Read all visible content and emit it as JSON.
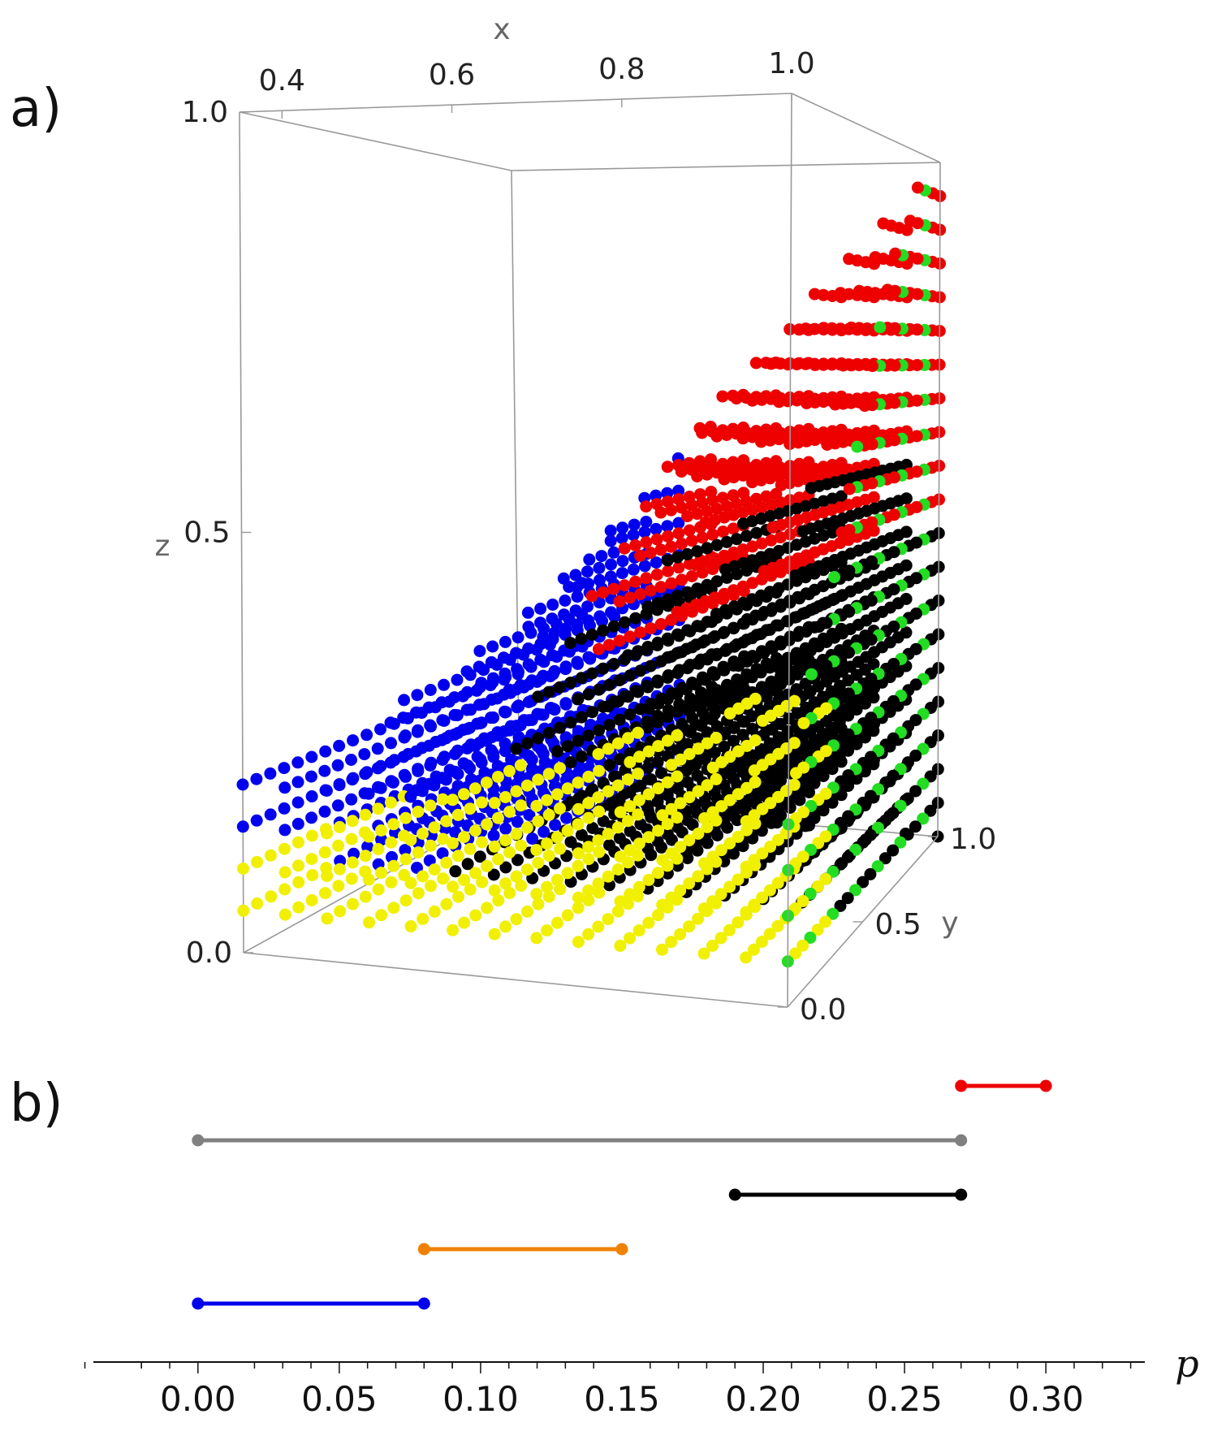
{
  "panels": {
    "a": {
      "label": "a)"
    },
    "b": {
      "label": "b)"
    }
  },
  "chart_data": [
    {
      "type": "scatter",
      "panel": "a",
      "projection": "3d",
      "xlabel": "x",
      "ylabel": "y",
      "zlabel": "z",
      "xlim": [
        0.35,
        1.0
      ],
      "ylim": [
        0.0,
        1.0
      ],
      "zlim": [
        0.0,
        1.0
      ],
      "x_ticks": [
        "0.4",
        "0.6",
        "0.8",
        "1.0"
      ],
      "y_ticks": [
        "0.0",
        "0.5",
        "1.0"
      ],
      "z_ticks": [
        "0.0",
        "0.5",
        "1.0"
      ],
      "grid": false,
      "series_colors": {
        "blue": "#0000ee",
        "black": "#000000",
        "red": "#ee0000",
        "yellow": "#f0f000",
        "green": "#22dd22"
      },
      "note_values": "dense lattice of points; colored regions form a wedge with z <= x and z <= 1 - (1-x)*... shaped surface"
    },
    {
      "type": "interval",
      "panel": "b",
      "xlabel": "p",
      "xlim": [
        -0.037,
        0.335
      ],
      "x_ticks": [
        "0.00",
        "0.05",
        "0.10",
        "0.15",
        "0.20",
        "0.25",
        "0.30"
      ],
      "x_tick_values": [
        0.0,
        0.05,
        0.1,
        0.15,
        0.2,
        0.25,
        0.3
      ],
      "intervals": [
        {
          "color": "#ee0000",
          "start": 0.27,
          "end": 0.3
        },
        {
          "color": "#808080",
          "start": 0.0,
          "end": 0.27
        },
        {
          "color": "#000000",
          "start": 0.19,
          "end": 0.27
        },
        {
          "color": "#f08000",
          "start": 0.08,
          "end": 0.15
        },
        {
          "color": "#0000ee",
          "start": 0.0,
          "end": 0.08
        }
      ]
    }
  ]
}
